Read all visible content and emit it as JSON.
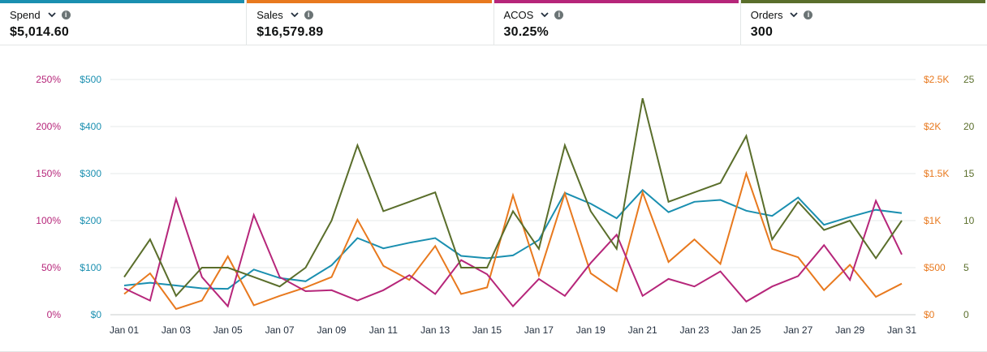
{
  "metrics": [
    {
      "label": "Spend",
      "value": "$5,014.60",
      "color": "#1a8fb0"
    },
    {
      "label": "Sales",
      "value": "$16,579.89",
      "color": "#e8791e"
    },
    {
      "label": "ACOS",
      "value": "30.25%",
      "color": "#b6267a"
    },
    {
      "label": "Orders",
      "value": "300",
      "color": "#5a6e2b"
    }
  ],
  "chart_data": {
    "type": "line",
    "x": [
      "Jan 01",
      "Jan 02",
      "Jan 03",
      "Jan 04",
      "Jan 05",
      "Jan 06",
      "Jan 07",
      "Jan 08",
      "Jan 09",
      "Jan 10",
      "Jan 11",
      "Jan 12",
      "Jan 13",
      "Jan 14",
      "Jan 15",
      "Jan 16",
      "Jan 17",
      "Jan 18",
      "Jan 19",
      "Jan 20",
      "Jan 21",
      "Jan 22",
      "Jan 23",
      "Jan 24",
      "Jan 25",
      "Jan 26",
      "Jan 27",
      "Jan 28",
      "Jan 29",
      "Jan 30",
      "Jan 31"
    ],
    "x_tick_labels": [
      "Jan 01",
      "Jan 03",
      "Jan 05",
      "Jan 07",
      "Jan 09",
      "Jan 11",
      "Jan 13",
      "Jan 15",
      "Jan 17",
      "Jan 19",
      "Jan 21",
      "Jan 23",
      "Jan 25",
      "Jan 27",
      "Jan 29",
      "Jan 31"
    ],
    "axes": {
      "acos": {
        "ticks": [
          "0%",
          "50%",
          "100%",
          "150%",
          "200%",
          "250%"
        ],
        "range": [
          0,
          250
        ],
        "side": "left-outer",
        "color": "#b6267a"
      },
      "spend": {
        "ticks": [
          "$0",
          "$100",
          "$200",
          "$300",
          "$400",
          "$500"
        ],
        "range": [
          0,
          500
        ],
        "side": "left-inner",
        "color": "#1a8fb0"
      },
      "sales": {
        "ticks": [
          "$0",
          "$500",
          "$1K",
          "$1.5K",
          "$2K",
          "$2.5K"
        ],
        "range": [
          0,
          2500
        ],
        "side": "right-inner",
        "color": "#e8791e"
      },
      "orders": {
        "ticks": [
          "0",
          "5",
          "10",
          "15",
          "20",
          "25"
        ],
        "range": [
          0,
          25
        ],
        "side": "right-outer",
        "color": "#5a6e2b"
      }
    },
    "grid": true,
    "series": [
      {
        "name": "Spend",
        "axis": "spend",
        "color": "#1a8fb0",
        "values": [
          62,
          68,
          62,
          56,
          55,
          96,
          78,
          71,
          105,
          163,
          141,
          153,
          163,
          125,
          120,
          126,
          159,
          259,
          236,
          205,
          265,
          218,
          240,
          244,
          221,
          210,
          249,
          191,
          208,
          223,
          216
        ]
      },
      {
        "name": "Sales",
        "axis": "sales",
        "color": "#e8791e",
        "values": [
          220,
          440,
          60,
          150,
          620,
          100,
          200,
          290,
          400,
          1010,
          520,
          370,
          730,
          220,
          290,
          1270,
          420,
          1290,
          440,
          250,
          1300,
          560,
          800,
          540,
          1500,
          700,
          610,
          260,
          530,
          190,
          330
        ]
      },
      {
        "name": "ACOS",
        "axis": "acos",
        "color": "#b6267a",
        "values": [
          28,
          15,
          123,
          40,
          9,
          106,
          40,
          25,
          26,
          15,
          26,
          42,
          22,
          58,
          43,
          9,
          38,
          20,
          55,
          85,
          20,
          38,
          30,
          46,
          14,
          30,
          41,
          74,
          37,
          121,
          64
        ]
      },
      {
        "name": "Orders",
        "axis": "orders",
        "color": "#5a6e2b",
        "values": [
          4,
          8,
          2,
          5,
          5,
          4,
          3,
          5,
          10,
          18,
          11,
          12,
          13,
          5,
          5,
          11,
          7,
          18,
          11,
          7,
          23,
          12,
          13,
          14,
          19,
          8,
          12,
          9,
          10,
          6,
          10
        ]
      }
    ]
  }
}
